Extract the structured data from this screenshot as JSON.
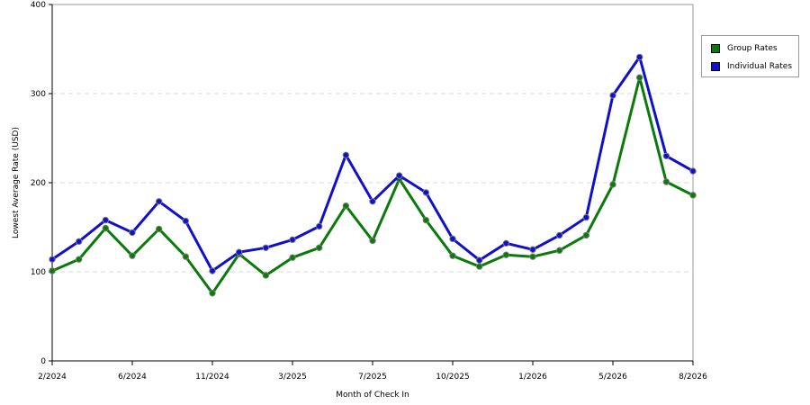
{
  "chart_data": {
    "type": "line",
    "xlabel": "Month of Check In",
    "ylabel": "Lowest Average Rate (USD)",
    "ylim": [
      0,
      400
    ],
    "yticks": [
      0,
      100,
      200,
      300,
      400
    ],
    "grid": "horizontal-dashed",
    "legend_position": "top-right",
    "x_tick_labels": [
      "2/2024",
      "6/2024",
      "11/2024",
      "3/2025",
      "7/2025",
      "10/2025",
      "1/2026",
      "5/2026",
      "8/2026"
    ],
    "x_tick_indices": [
      0,
      3,
      6,
      9,
      12,
      15,
      18,
      21,
      24
    ],
    "series": [
      {
        "name": "Group Rates",
        "color": "#0a7a0a",
        "values": [
          101,
          114,
          149,
          118,
          148,
          117,
          76,
          120,
          96,
          116,
          127,
          174,
          135,
          204,
          158,
          118,
          106,
          119,
          117,
          124,
          141,
          198,
          318,
          201,
          186
        ]
      },
      {
        "name": "Individual Rates",
        "color": "#1010cc",
        "values": [
          114,
          134,
          158,
          144,
          179,
          157,
          101,
          122,
          127,
          136,
          151,
          231,
          179,
          208,
          189,
          137,
          113,
          132,
          125,
          141,
          161,
          298,
          341,
          230,
          213
        ]
      }
    ]
  }
}
